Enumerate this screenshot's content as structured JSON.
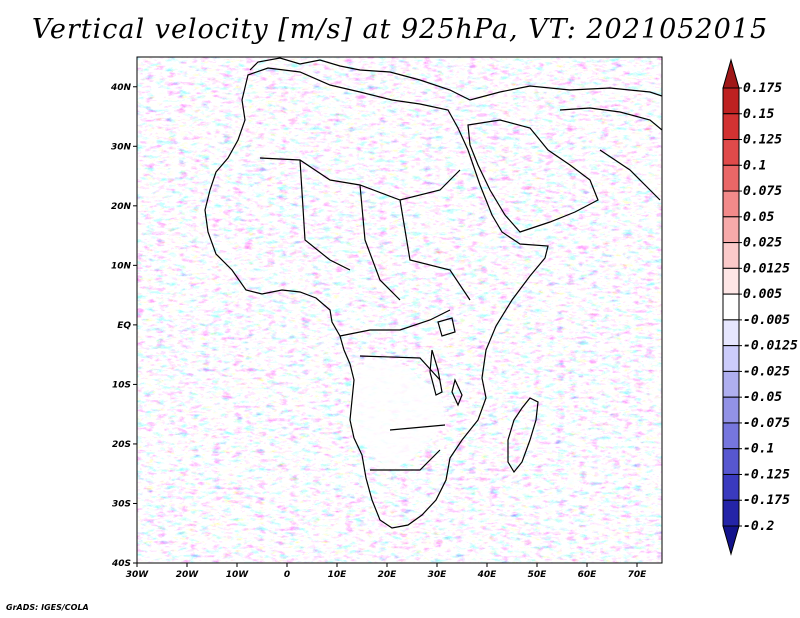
{
  "title": "Vertical velocity [m/s] at 925hPa, VT: 2021052015",
  "footer": "GrADS: IGES/COLA",
  "map": {
    "projection": "latlon",
    "lon_range": [
      -30,
      75
    ],
    "lat_range": [
      -40,
      45
    ],
    "lat_ticks": [
      {
        "value": 40,
        "label": "40N"
      },
      {
        "value": 30,
        "label": "30N"
      },
      {
        "value": 20,
        "label": "20N"
      },
      {
        "value": 10,
        "label": "10N"
      },
      {
        "value": 0,
        "label": "EQ"
      },
      {
        "value": -10,
        "label": "10S"
      },
      {
        "value": -20,
        "label": "20S"
      },
      {
        "value": -30,
        "label": "30S"
      },
      {
        "value": -40,
        "label": "40S"
      }
    ],
    "lon_ticks": [
      {
        "value": -30,
        "label": "30W"
      },
      {
        "value": -20,
        "label": "20W"
      },
      {
        "value": -10,
        "label": "10W"
      },
      {
        "value": 0,
        "label": "0"
      },
      {
        "value": 10,
        "label": "10E"
      },
      {
        "value": 20,
        "label": "20E"
      },
      {
        "value": 30,
        "label": "30E"
      },
      {
        "value": 40,
        "label": "40E"
      },
      {
        "value": 50,
        "label": "50E"
      },
      {
        "value": 60,
        "label": "60E"
      },
      {
        "value": 70,
        "label": "70E"
      }
    ],
    "colors": {
      "positive": "#e3413f",
      "negative": "#3b3bd8",
      "neutral": "#ffffff",
      "land_line": "#000000"
    }
  },
  "colorbar": {
    "levels": [
      "0.175",
      "0.15",
      "0.125",
      "0.1",
      "0.075",
      "0.05",
      "0.025",
      "0.0125",
      "0.005",
      "-0.005",
      "-0.0125",
      "-0.025",
      "-0.05",
      "-0.075",
      "-0.1",
      "-0.125",
      "-0.175",
      "-0.2"
    ],
    "colors": [
      "#a01818",
      "#be2121",
      "#d23232",
      "#e04a4a",
      "#ea6767",
      "#f28a8a",
      "#f7aaaa",
      "#fbcaca",
      "#fee6e6",
      "#ffffff",
      "#e6e6fe",
      "#ccccfb",
      "#afafef",
      "#9292e6",
      "#7676de",
      "#5757d0",
      "#3a3abf",
      "#2424a8",
      "#13138c"
    ]
  }
}
